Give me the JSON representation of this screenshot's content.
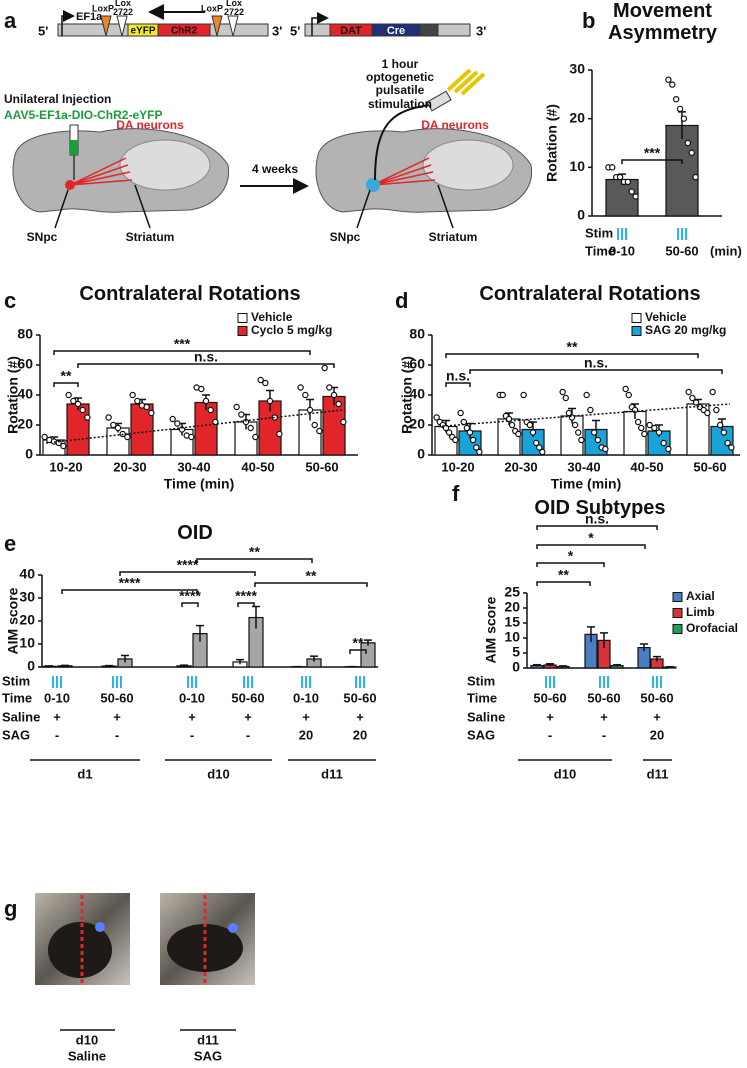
{
  "panel_labels": [
    "a",
    "b",
    "c",
    "d",
    "e",
    "f",
    "g"
  ],
  "diagram": {
    "construct_1": {
      "end_5": "5'",
      "promoter": "EF1a",
      "lox_p": [
        "LoxP",
        "LoxP"
      ],
      "lox_2722": [
        "Lox 2722",
        "Lox 2722"
      ],
      "genes": [
        "eYFP",
        "ChR2"
      ],
      "end_3": "3'"
    },
    "construct_2": {
      "end_5": "5'",
      "promoter": "DAT",
      "gene": "Cre",
      "end_3": "3'"
    },
    "injection": {
      "title": "Unilateral Injection",
      "virus": "AAV5-EF1a-DIO-ChR2-eYFP"
    },
    "before": {
      "cells": "DA neurons",
      "regions": [
        "SNpc",
        "Striatum"
      ]
    },
    "interval": "4 weeks",
    "stimulation": "1 hour optogenetic pulsatile stimulation",
    "after": {
      "cells": "DA neurons",
      "regions": [
        "SNpc",
        "Striatum"
      ]
    }
  },
  "chart_data": [
    {
      "type": "bar",
      "title": "Movement Asymmetry",
      "ylabel": "Rotation (#)",
      "ylim": [
        0,
        30
      ],
      "yticks": [
        0,
        10,
        20,
        30
      ],
      "stim_label": "Stim",
      "time_label": "Time",
      "categories": [
        "0-10",
        "50-60"
      ],
      "unit": "(min)",
      "series": [
        {
          "color": "#595959",
          "values": [
            7.5,
            18.6
          ],
          "errors": [
            1.1,
            2.8
          ],
          "points": [
            [
              10,
              10,
              8,
              8,
              7,
              7,
              5,
              4
            ],
            [
              28,
              27,
              24,
              22,
              20,
              15,
              13,
              8
            ]
          ]
        }
      ],
      "significance": [
        "***"
      ]
    },
    {
      "type": "bar",
      "title": "Contralateral Rotations",
      "ylabel": "Rotation (#)",
      "xlabel": "Time (min)",
      "ylim": [
        0,
        80
      ],
      "yticks": [
        0,
        20,
        40,
        60,
        80
      ],
      "categories": [
        "10-20",
        "20-30",
        "30-40",
        "40-50",
        "50-60"
      ],
      "series": [
        {
          "name": "Vehicle",
          "color": "#ffffff",
          "values": [
            10,
            18,
            17,
            22,
            30
          ],
          "errors": [
            2,
            3,
            4,
            5,
            7
          ],
          "points": [
            [
              12,
              10,
              9,
              8,
              6
            ],
            [
              25,
              20,
              18,
              14,
              12
            ],
            [
              24,
              21,
              17,
              13,
              12
            ],
            [
              32,
              27,
              22,
              18,
              12
            ],
            [
              45,
              40,
              30,
              20,
              16
            ]
          ]
        },
        {
          "name": "Cyclo 5 mg/kg",
          "color": "#e0262b",
          "values": [
            34,
            34,
            35,
            36,
            39
          ],
          "errors": [
            4,
            3,
            5,
            7,
            6
          ],
          "points": [
            [
              40,
              36,
              34,
              30,
              25
            ],
            [
              40,
              36,
              33,
              32,
              28
            ],
            [
              45,
              44,
              36,
              30,
              22
            ],
            [
              50,
              48,
              36,
              25,
              14
            ],
            [
              58,
              45,
              40,
              34,
              22
            ]
          ]
        }
      ],
      "significance": [
        "**",
        "***",
        "n.s."
      ],
      "trend": [
        8,
        30
      ]
    },
    {
      "type": "bar",
      "title": "Contralateral Rotations",
      "ylabel": "Rotation (#)",
      "xlabel": "Time (min)",
      "ylim": [
        0,
        80
      ],
      "yticks": [
        0,
        20,
        40,
        60,
        80
      ],
      "categories": [
        "10-20",
        "20-30",
        "30-40",
        "40-50",
        "50-60"
      ],
      "series": [
        {
          "name": "Vehicle",
          "color": "#ffffff",
          "values": [
            19,
            24,
            26,
            29,
            34
          ],
          "errors": [
            4,
            4,
            5,
            5,
            3
          ],
          "points": [
            [
              25,
              22,
              20,
              18,
              15,
              12,
              10
            ],
            [
              40,
              40,
              26,
              24,
              20,
              16,
              14
            ],
            [
              42,
              38,
              28,
              25,
              20,
              15,
              10
            ],
            [
              44,
              40,
              32,
              30,
              22,
              18,
              14
            ],
            [
              42,
              38,
              35,
              32,
              30,
              28
            ]
          ]
        },
        {
          "name": "SAG 20 mg/kg",
          "color": "#1aa3d9",
          "values": [
            16,
            17,
            17,
            16,
            19
          ],
          "errors": [
            5,
            5,
            6,
            4,
            5
          ],
          "points": [
            [
              28,
              22,
              18,
              15,
              10,
              5,
              2
            ],
            [
              40,
              22,
              20,
              15,
              8,
              5,
              2
            ],
            [
              40,
              30,
              15,
              10,
              5,
              4
            ],
            [
              20,
              18,
              15,
              8,
              4
            ],
            [
              42,
              30,
              20,
              15,
              8,
              5
            ]
          ]
        }
      ],
      "significance": [
        "n.s.",
        "**",
        "n.s."
      ],
      "trend": [
        19,
        34
      ]
    },
    {
      "type": "bar",
      "title": "OID",
      "ylabel": "AIM score",
      "ylim": [
        0,
        40
      ],
      "yticks": [
        0,
        10,
        20,
        30,
        40
      ],
      "stim_label": "Stim",
      "time_label": "Time",
      "categories": [
        "0-10",
        "50-60",
        "0-10",
        "50-60",
        "0-10",
        "50-60"
      ],
      "rows": [
        {
          "label": "Saline",
          "values": [
            "+",
            "+",
            "+",
            "+",
            "+",
            "+"
          ]
        },
        {
          "label": "SAG",
          "values": [
            "-",
            "-",
            "-",
            "-",
            20,
            20
          ]
        }
      ],
      "groups": [
        "d1",
        "d10",
        "d11"
      ],
      "series": [
        {
          "color": "#ffffff",
          "values": [
            0.3,
            0.4,
            0.5,
            2.2,
            0.1,
            0.1
          ],
          "errors": [
            0.2,
            0.2,
            0.3,
            1.0,
            0.05,
            0.05
          ]
        },
        {
          "color": "#a6a6a6",
          "values": [
            0.5,
            3.5,
            14.5,
            21.5,
            3.5,
            10.5
          ],
          "errors": [
            0.2,
            1.5,
            3.5,
            4.8,
            1.2,
            1.2
          ]
        }
      ],
      "significance": [
        "**",
        "****",
        "****",
        "**",
        "****",
        "****",
        "**"
      ]
    },
    {
      "type": "bar",
      "title": "OID Subtypes",
      "ylabel": "AIM score",
      "ylim": [
        0,
        25
      ],
      "yticks": [
        0,
        5,
        10,
        15,
        20,
        25
      ],
      "stim_label": "Stim",
      "time_label": "Time",
      "categories": [
        "50-60",
        "50-60",
        "50-60"
      ],
      "rows": [
        {
          "label": "Saline",
          "values": [
            "+",
            "+",
            "+"
          ]
        },
        {
          "label": "SAG",
          "values": [
            "-",
            "-",
            20
          ]
        }
      ],
      "groups": [
        "d10",
        "d11"
      ],
      "series": [
        {
          "name": "Axial",
          "color": "#4a7ec4",
          "values": [
            0.8,
            11.2,
            6.8
          ],
          "errors": [
            0.3,
            2.5,
            1.2
          ]
        },
        {
          "name": "Limb",
          "color": "#d8323c",
          "values": [
            1.0,
            9.2,
            3.0
          ],
          "errors": [
            0.4,
            2.5,
            0.8
          ]
        },
        {
          "name": "Orofacial",
          "color": "#1e9e5a",
          "values": [
            0.5,
            0.8,
            0.3
          ],
          "errors": [
            0.2,
            0.3,
            0.1
          ]
        }
      ],
      "legend": "right",
      "significance": [
        "n.s.",
        "*",
        "*",
        "**"
      ]
    }
  ],
  "photos": [
    {
      "day": "d10",
      "treatment": "Saline"
    },
    {
      "day": "d11",
      "treatment": "SAG"
    }
  ]
}
